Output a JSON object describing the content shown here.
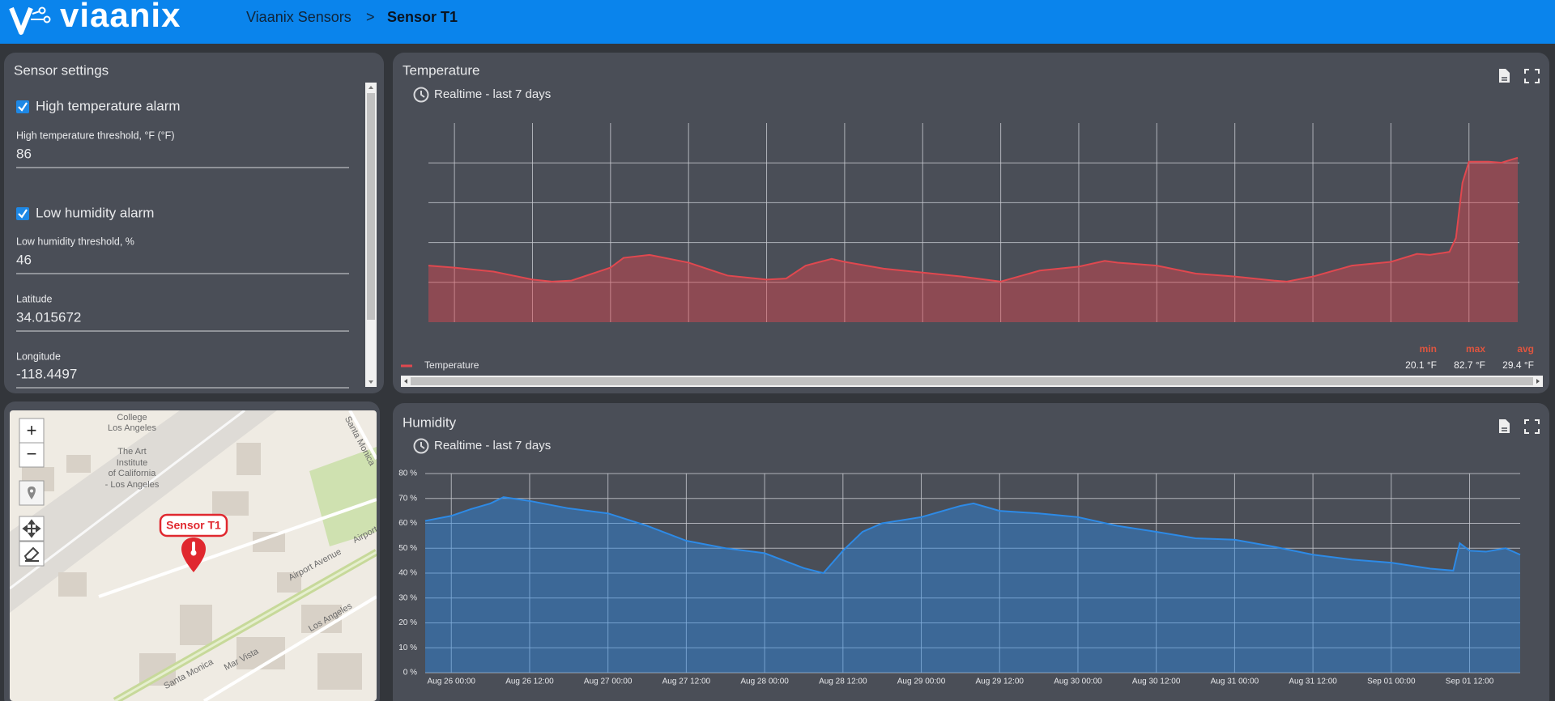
{
  "header": {
    "logo": "viaanix",
    "breadcrumb": [
      "Viaanix Sensors",
      ">",
      "Sensor T1"
    ]
  },
  "settings": {
    "title": "Sensor settings",
    "fields": [
      {
        "label": "High temperature alarm",
        "checked": true
      },
      {
        "label": "High temperature threshold, °F (°F)",
        "value": 86
      },
      {
        "label": "Low humidity alarm",
        "checked": true
      },
      {
        "label": "Low humidity threshold, %",
        "value": 46
      },
      {
        "label": "Latitude",
        "value": 34.015672
      },
      {
        "label": "Longitude",
        "value": -118.4497
      }
    ]
  },
  "map": {
    "zoom": [
      "+",
      "−"
    ],
    "marker": "Sensor T1",
    "labels": [
      "College",
      "Los Angeles",
      "The Art",
      "Institute",
      "of California",
      "- Los Angeles",
      "Santa Monica",
      "Airport Avenue",
      "Airport",
      "Los Angeles",
      "Santa Monica",
      "Mar Vista"
    ]
  },
  "chart_data": [
    {
      "type": "area",
      "title": "Temperature",
      "subtitle": "Realtime - last 7 days",
      "x": [
        "Aug 25 20:00",
        "Aug 26 00:00",
        "Aug 26 06:00",
        "Aug 26 12:00",
        "Aug 26 15:00",
        "Aug 26 18:00",
        "Aug 27 00:00",
        "Aug 27 02:00",
        "Aug 27 06:00",
        "Aug 27 12:00",
        "Aug 27 18:00",
        "Aug 28 00:00",
        "Aug 28 03:00",
        "Aug 28 06:00",
        "Aug 28 10:00",
        "Aug 28 12:00",
        "Aug 28 18:00",
        "Aug 29 00:00",
        "Aug 29 06:00",
        "Aug 29 12:00",
        "Aug 29 18:00",
        "Aug 30 00:00",
        "Aug 30 04:00",
        "Aug 30 06:00",
        "Aug 30 12:00",
        "Aug 30 18:00",
        "Aug 31 00:00",
        "Aug 31 06:00",
        "Aug 31 08:00",
        "Aug 31 12:00",
        "Aug 31 18:00",
        "Sep 01 00:00",
        "Sep 01 04:00",
        "Sep 01 06:00",
        "Sep 01 09:00",
        "Sep 01 10:00",
        "Sep 01 11:00",
        "Sep 01 12:00",
        "Sep 01 15:00",
        "Sep 01 17:00",
        "Sep 01 19:30"
      ],
      "series": [
        {
          "name": "Temperature",
          "color": "#e0484f",
          "values": [
            28.4,
            27.4,
            25.4,
            21.4,
            20.4,
            20.9,
            27.4,
            32.3,
            33.8,
            29.9,
            23.4,
            21.4,
            21.9,
            28.4,
            31.8,
            30.3,
            26.9,
            24.9,
            22.9,
            20.4,
            25.9,
            27.9,
            30.8,
            29.9,
            28.4,
            24.4,
            22.9,
            20.9,
            20.4,
            22.9,
            28.4,
            30.3,
            34.3,
            33.8,
            35.3,
            42.3,
            70,
            80.6,
            80.6,
            80.1,
            82.6
          ]
        }
      ],
      "xlim": [
        "Aug 25 20:00",
        "Sep 01 19:45"
      ],
      "xticks": [
        "Aug 26 00:00",
        "Aug 26 12:00",
        "Aug 27 00:00",
        "Aug 27 12:00",
        "Aug 28 00:00",
        "Aug 28 12:00",
        "Aug 29 00:00",
        "Aug 29 12:00",
        "Aug 30 00:00",
        "Aug 30 12:00",
        "Aug 31 00:00",
        "Aug 31 12:00",
        "Sep 01 00:00",
        "Sep 01 12:00"
      ],
      "xtick_labels": false,
      "ylim": [
        0,
        100
      ],
      "yticks": [
        20,
        40,
        60,
        80
      ],
      "ytick_labels": false,
      "grid": true,
      "legend": "bottom-left",
      "stats": [
        {
          "label": "min",
          "value": "20.1 °F"
        },
        {
          "label": "max",
          "value": "82.7 °F"
        },
        {
          "label": "avg",
          "value": "29.4 °F"
        }
      ]
    },
    {
      "type": "area",
      "title": "Humidity",
      "subtitle": "Realtime - last 7 days",
      "x": [
        "Aug 25 20:00",
        "Aug 26 00:00",
        "Aug 26 03:00",
        "Aug 26 06:00",
        "Aug 26 08:00",
        "Aug 26 12:00",
        "Aug 26 18:00",
        "Aug 27 00:00",
        "Aug 27 06:00",
        "Aug 27 12:00",
        "Aug 27 18:00",
        "Aug 28 00:00",
        "Aug 28 06:00",
        "Aug 28 09:00",
        "Aug 28 12:00",
        "Aug 28 15:00",
        "Aug 28 18:00",
        "Aug 29 00:00",
        "Aug 29 06:00",
        "Aug 29 08:00",
        "Aug 29 12:00",
        "Aug 29 18:00",
        "Aug 30 00:00",
        "Aug 30 06:00",
        "Aug 30 12:00",
        "Aug 30 18:00",
        "Aug 31 00:00",
        "Aug 31 06:00",
        "Aug 31 12:00",
        "Aug 31 18:00",
        "Sep 01 00:00",
        "Sep 01 06:00",
        "Sep 01 09:30",
        "Sep 01 10:30",
        "Sep 01 12:00",
        "Sep 01 14:30",
        "Sep 01 17:30",
        "Sep 01 19:45"
      ],
      "series": [
        {
          "color": "#2d8ae6",
          "values": [
            61,
            63,
            65.7,
            68,
            70.5,
            69,
            66,
            64,
            59,
            53,
            50,
            48,
            42,
            40,
            49,
            56.6,
            60,
            62.5,
            67,
            68,
            65,
            64,
            62.5,
            59,
            56.6,
            54,
            53.4,
            50.6,
            47.4,
            45.4,
            44.2,
            41.8,
            41,
            52,
            49,
            48.6,
            50,
            47.4
          ]
        }
      ],
      "xlim": [
        "Aug 25 20:00",
        "Sep 01 19:45"
      ],
      "xticks": [
        "Aug 26 00:00",
        "Aug 26 12:00",
        "Aug 27 00:00",
        "Aug 27 12:00",
        "Aug 28 00:00",
        "Aug 28 12:00",
        "Aug 29 00:00",
        "Aug 29 12:00",
        "Aug 30 00:00",
        "Aug 30 12:00",
        "Aug 31 00:00",
        "Aug 31 12:00",
        "Sep 01 00:00",
        "Sep 01 12:00"
      ],
      "xtick_labels": true,
      "ylim": [
        0,
        80
      ],
      "yticks": [
        {
          "value": 0,
          "label": "0 %"
        },
        {
          "value": 10,
          "label": "10 %"
        },
        {
          "value": 20,
          "label": "20 %"
        },
        {
          "value": 30,
          "label": "30 %"
        },
        {
          "value": 40,
          "label": "40 %"
        },
        {
          "value": 50,
          "label": "50 %"
        },
        {
          "value": 60,
          "label": "60 %"
        },
        {
          "value": 70,
          "label": "70 %"
        },
        {
          "value": 80,
          "label": "80 %"
        }
      ],
      "ytick_labels": true,
      "grid": true
    }
  ]
}
